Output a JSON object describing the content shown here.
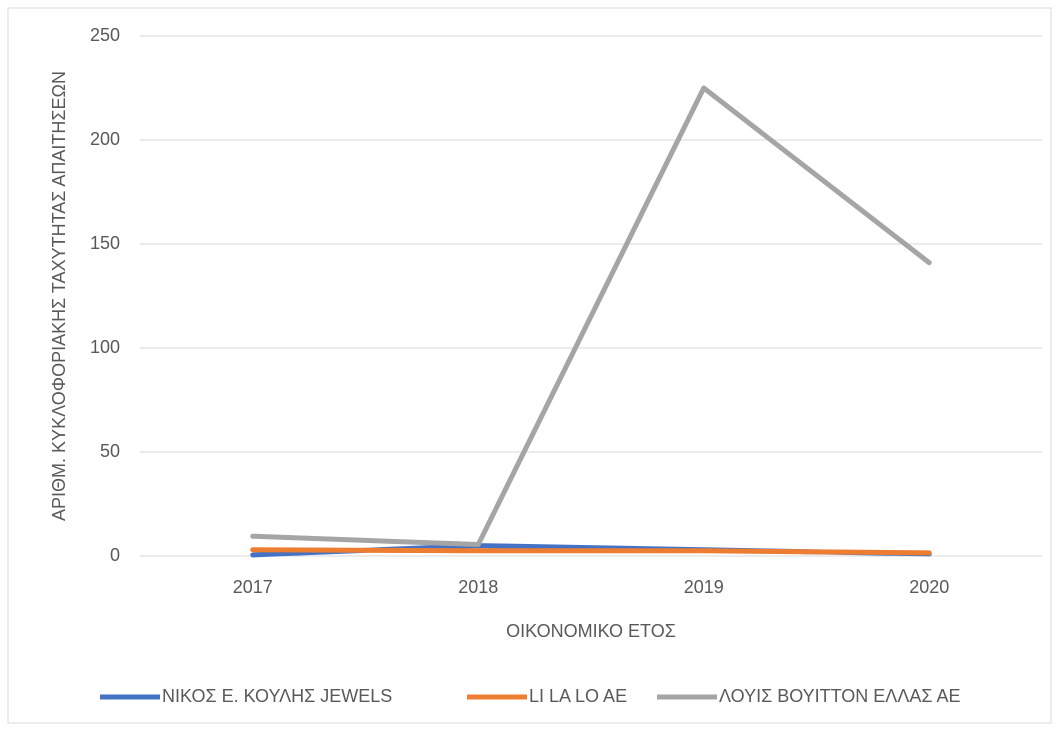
{
  "chart_data": {
    "type": "line",
    "x_label": "ΟΙΚΟΝΟΜΙΚΟ ΕΤΟΣ",
    "y_label": "ΑΡΙΘΜ. ΚΥΚΛΟΦΟΡΙΑΚΗΣ ΤΑΧΥΤΗΤΑΣ ΑΠΑΙΤΗΣΕΩΝ",
    "categories": [
      "2017",
      "2018",
      "2019",
      "2020"
    ],
    "series": [
      {
        "name": "ΝΙΚΟΣ Ε. ΚΟΥΛΗΣ JEWELS",
        "color": "#4472c4",
        "values": [
          0.5,
          5,
          3,
          1
        ]
      },
      {
        "name": "LI LA LO AE",
        "color": "#ed7d31",
        "values": [
          3,
          2.5,
          2.5,
          1.5
        ]
      },
      {
        "name": "ΛΟΥΙΣ ΒΟΥΙΤΤΟΝ ΕΛΛΑΣ ΑΕ",
        "color": "#a5a5a5",
        "values": [
          9.5,
          5.5,
          225,
          141
        ]
      }
    ],
    "ylim": [
      0,
      250
    ],
    "yticks": [
      0,
      50,
      100,
      150,
      200,
      250
    ],
    "grid": true,
    "legend": "bottom"
  }
}
